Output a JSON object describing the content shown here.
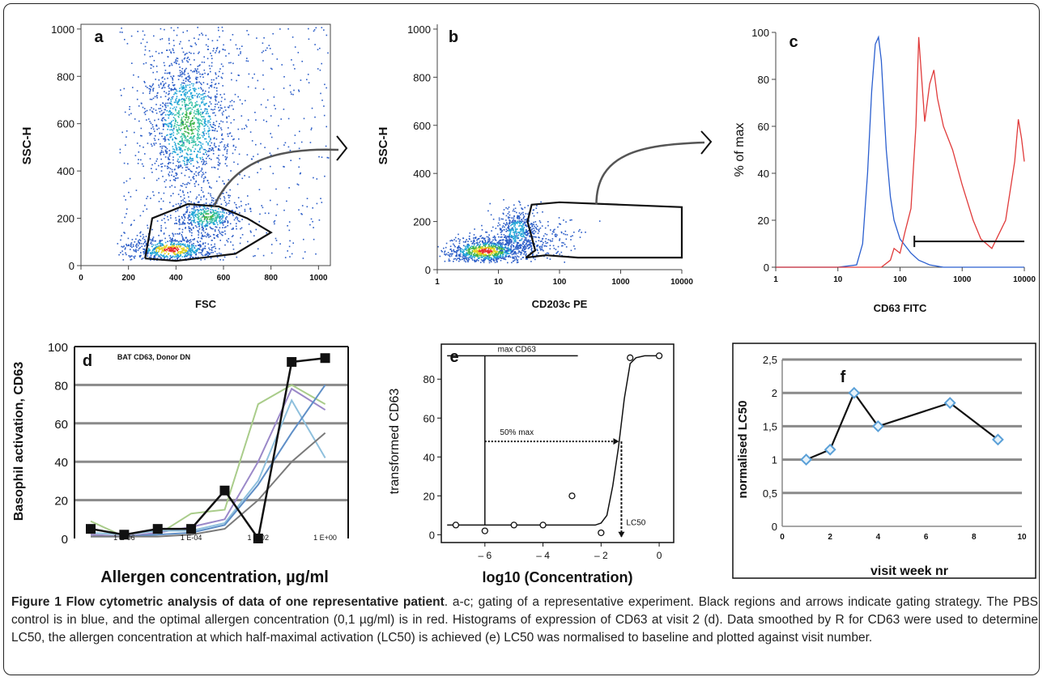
{
  "panels": {
    "a": {
      "letter": "a",
      "ylabel": "SSC-H",
      "xlabel": "FSC",
      "yticks": [
        "0",
        "200",
        "400",
        "600",
        "800",
        "1000"
      ],
      "xticks": [
        "0",
        "200",
        "400",
        "600",
        "800",
        "1000"
      ]
    },
    "b": {
      "letter": "b",
      "ylabel": "SSC-H",
      "xlabel": "CD203c PE",
      "yticks": [
        "0",
        "200",
        "400",
        "600",
        "800",
        "1000"
      ],
      "xticks": [
        "1",
        "10",
        "100",
        "1000",
        "10000"
      ]
    },
    "c": {
      "letter": "c",
      "ylabel": "% of max",
      "xlabel": "CD63 FITC",
      "yticks": [
        "0",
        "20",
        "40",
        "60",
        "80",
        "100"
      ],
      "xticks": [
        "1",
        "10",
        "100",
        "1000",
        "10000"
      ]
    },
    "d": {
      "letter": "d",
      "ylabel": "Basophil activation,  CD63",
      "xlabel": "Allergen concentration,  µg/ml",
      "title": "BAT CD63, Donor DN",
      "yticks": [
        "0",
        "20",
        "40",
        "60",
        "80",
        "100"
      ],
      "xticks": [
        "1 E-06",
        "1 E-04",
        "1 E-02",
        "1 E+00"
      ]
    },
    "e": {
      "letter": "e",
      "ylabel": "transformed CD63",
      "xlabel": "log10 (Concentration)",
      "yticks": [
        "0",
        "20",
        "40",
        "60",
        "80"
      ],
      "xticks": [
        "– 6",
        "– 4",
        "– 2",
        "0"
      ],
      "max_label": "max CD63",
      "half_label": "50% max",
      "lc50_label": "LC50"
    },
    "f": {
      "letter": "f",
      "ylabel": "normalised LC50",
      "xlabel": "visit week nr",
      "yticks": [
        "0",
        "0,5",
        "1",
        "1,5",
        "2",
        "2,5"
      ],
      "xticks": [
        "0",
        "2",
        "4",
        "6",
        "8",
        "10"
      ]
    }
  },
  "caption": {
    "bold": "Figure 1 Flow cytometric analysis of data of one representative patient",
    "text": ". a-c; gating of a representative experiment. Black regions and arrows indicate gating strategy. The PBS control is in blue, and the optimal allergen concentration (0,1 µg/ml) is in red. Histograms of expression of CD63 at visit 2 (d). Data smoothed by R for CD63 were used to determine LC50, the allergen concentration at which half-maximal activation (LC50) is achieved (e) LC50 was normalised to baseline and plotted against visit number."
  },
  "colors": {
    "pbs": "#2b5fcf",
    "allergen": "#e03b3b",
    "black": "#111111",
    "diamond": "#5aa0d8"
  },
  "chart_data": [
    {
      "type": "scatter",
      "panel": "a",
      "xlabel": "FSC",
      "ylabel": "SSC-H",
      "xlim": [
        0,
        1050
      ],
      "ylim": [
        0,
        1020
      ],
      "populations": [
        {
          "name": "",
          "center": [
            450,
            600
          ],
          "spread": [
            90,
            160
          ]
        },
        {
          "name": "",
          "center": [
            380,
            70
          ],
          "spread": [
            100,
            30
          ]
        },
        {
          "name": "",
          "center": [
            530,
            210
          ],
          "spread": [
            70,
            40
          ]
        }
      ],
      "gate_polygon": [
        [
          270,
          30
        ],
        [
          300,
          200
        ],
        [
          450,
          260
        ],
        [
          580,
          250
        ],
        [
          700,
          200
        ],
        [
          800,
          140
        ],
        [
          650,
          50
        ],
        [
          400,
          20
        ],
        [
          270,
          30
        ]
      ]
    },
    {
      "type": "scatter",
      "panel": "b",
      "xlabel": "CD203c PE",
      "ylabel": "SSC-H",
      "xscale": "log",
      "xlim": [
        1,
        10000
      ],
      "ylim": [
        0,
        1020
      ],
      "populations": [
        {
          "name": "",
          "center": [
            6,
            80
          ],
          "spread": [
            0.35,
            30
          ]
        },
        {
          "name": "",
          "center": [
            20,
            160
          ],
          "spread": [
            0.2,
            50
          ]
        }
      ],
      "gate_polygon": [
        [
          28,
          50
        ],
        [
          40,
          80
        ],
        [
          30,
          200
        ],
        [
          35,
          270
        ],
        [
          100,
          280
        ],
        [
          1000,
          270
        ],
        [
          10000,
          260
        ],
        [
          10000,
          50
        ],
        [
          200,
          50
        ],
        [
          60,
          60
        ],
        [
          28,
          50
        ]
      ]
    },
    {
      "type": "line",
      "panel": "c",
      "xlabel": "CD63 FITC",
      "ylabel": "% of max",
      "xscale": "log",
      "xlim": [
        1,
        10000
      ],
      "ylim": [
        0,
        100
      ],
      "series": [
        {
          "name": "",
          "color": "#2b5fcf",
          "x": [
            1,
            10,
            20,
            25,
            30,
            35,
            40,
            45,
            50,
            60,
            70,
            80,
            100,
            150,
            200,
            300,
            500,
            10000
          ],
          "y": [
            0,
            0,
            1,
            10,
            40,
            75,
            95,
            98,
            88,
            50,
            30,
            20,
            12,
            6,
            3,
            1,
            0,
            0
          ]
        },
        {
          "name": "",
          "color": "#e03b3b",
          "x": [
            1,
            50,
            70,
            80,
            100,
            120,
            150,
            180,
            200,
            250,
            300,
            350,
            400,
            500,
            700,
            1000,
            1500,
            2000,
            3000,
            5000,
            7000,
            8000,
            9000,
            10000
          ],
          "y": [
            0,
            0,
            3,
            8,
            6,
            15,
            25,
            60,
            98,
            62,
            78,
            84,
            72,
            60,
            50,
            35,
            20,
            12,
            8,
            20,
            45,
            63,
            55,
            45
          ]
        }
      ],
      "marker_range": [
        170,
        10000
      ],
      "marker_y": 11
    },
    {
      "type": "line",
      "panel": "d",
      "title": "BAT CD63, Donor DN",
      "xlabel": "Allergen concentration,  µg/ml",
      "ylabel": "Basophil activation,  CD63",
      "xscale": "log",
      "ylim": [
        0,
        100
      ],
      "x": [
        1e-07,
        1e-06,
        1e-05,
        0.0001,
        0.001,
        0.01,
        0.1,
        1
      ],
      "series": [
        {
          "name": "",
          "color": "#111111",
          "markers": "square",
          "values": [
            5,
            2,
            5,
            5,
            25,
            0,
            92,
            94
          ]
        },
        {
          "name": "",
          "color": "#a9cc8a",
          "values": [
            9,
            1,
            2,
            13,
            15,
            70,
            80,
            70
          ]
        },
        {
          "name": "",
          "color": "#9a88c8",
          "values": [
            2,
            1,
            3,
            6,
            10,
            40,
            78,
            67
          ]
        },
        {
          "name": "",
          "color": "#8fc0dd",
          "values": [
            3,
            2,
            4,
            4,
            8,
            30,
            72,
            42
          ]
        },
        {
          "name": "",
          "color": "#5f8fc7",
          "values": [
            1,
            1,
            2,
            3,
            7,
            28,
            55,
            80
          ]
        },
        {
          "name": "",
          "color": "#7a7a7a",
          "values": [
            1,
            1,
            1,
            2,
            5,
            20,
            40,
            55
          ]
        }
      ]
    },
    {
      "type": "scatter",
      "panel": "e",
      "xlabel": "log10 (Concentration)",
      "ylabel": "transformed CD63",
      "xlim": [
        -7.5,
        0.5
      ],
      "ylim": [
        -4,
        98
      ],
      "points": [
        [
          -7,
          5
        ],
        [
          -6,
          2
        ],
        [
          -5,
          5
        ],
        [
          -4,
          5
        ],
        [
          -3,
          20
        ],
        [
          -2,
          1
        ],
        [
          -1,
          91
        ],
        [
          0,
          92
        ]
      ],
      "fit": {
        "x": [
          -7.3,
          -2.2,
          -2,
          -1.8,
          -1.6,
          -1.4,
          -1.2,
          -1.0,
          -0.8,
          -0.5,
          0
        ],
        "y": [
          5,
          5,
          6,
          10,
          25,
          45,
          70,
          88,
          91,
          92,
          92
        ]
      },
      "max_line_y": 92,
      "half_line_y": 48,
      "lc50_x": -1.3,
      "min_line_y": 5
    },
    {
      "type": "line",
      "panel": "f",
      "xlabel": "visit week nr",
      "ylabel": "normalised LC50",
      "xlim": [
        0,
        10
      ],
      "ylim": [
        0,
        2.5
      ],
      "series": [
        {
          "name": "",
          "color": "#111111",
          "marker_color": "#5aa0d8",
          "markers": "diamond",
          "x": [
            1,
            2,
            3,
            4,
            7,
            9
          ],
          "y": [
            1,
            1.15,
            2,
            1.5,
            1.85,
            1.3
          ]
        }
      ]
    }
  ]
}
